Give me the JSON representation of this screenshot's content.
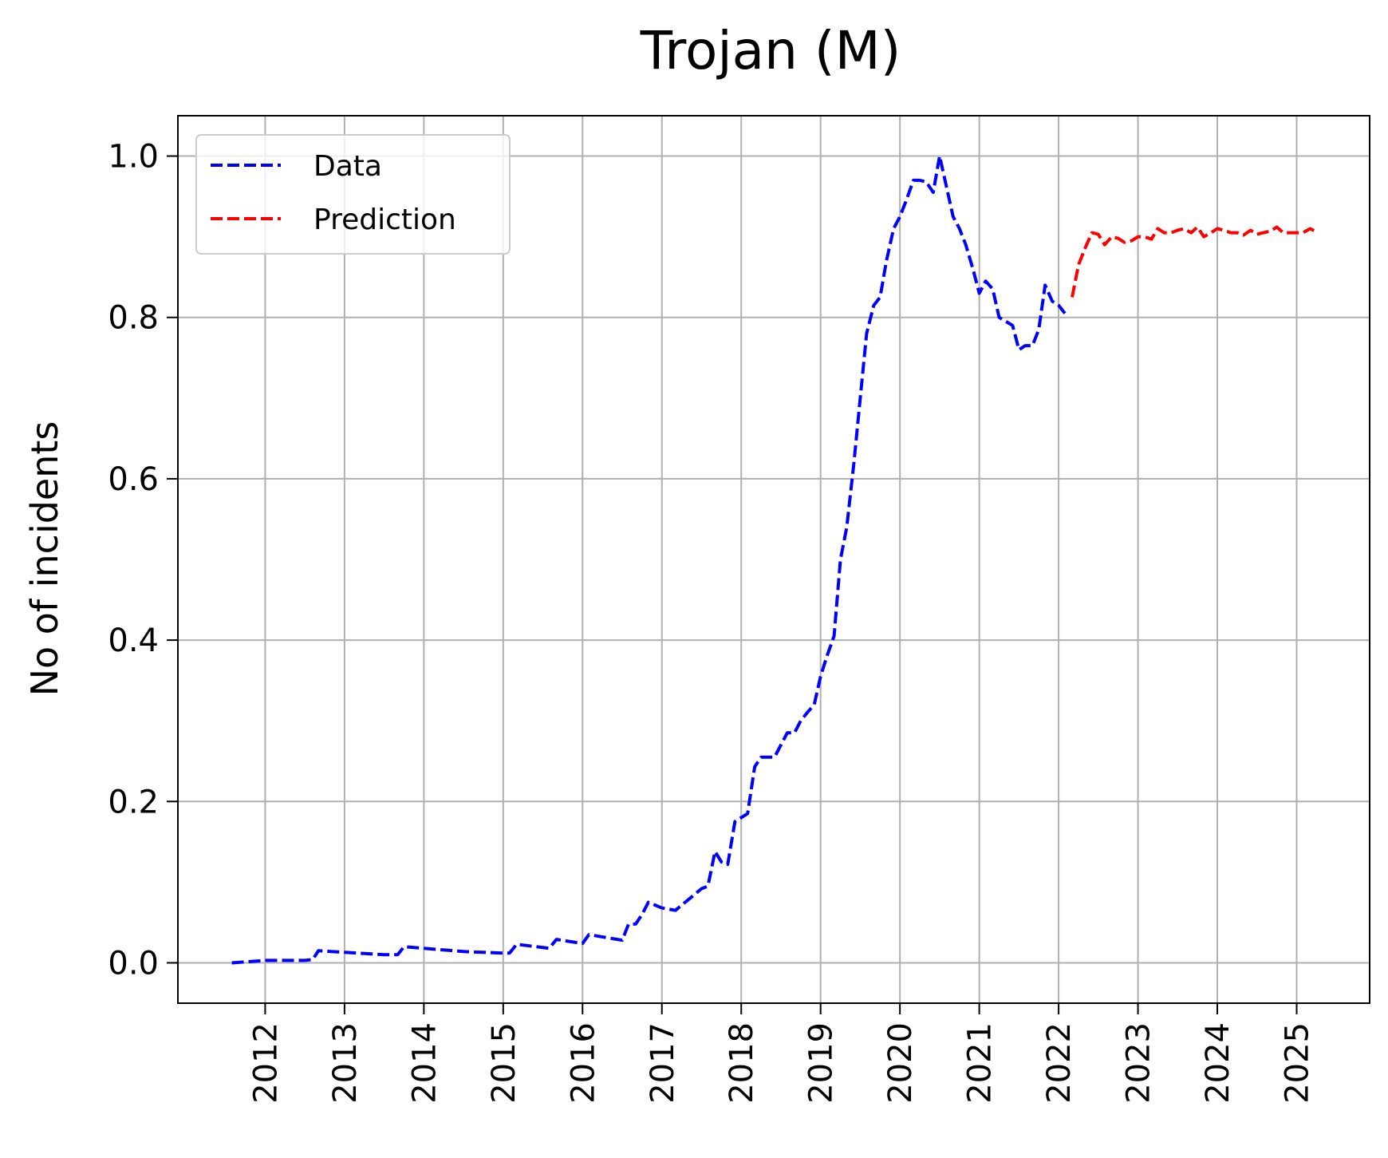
{
  "chart_data": {
    "type": "line",
    "title": "Trojan (M)",
    "xlabel": "",
    "ylabel": "No of incidents",
    "xlim": [
      2010.9,
      2025.92
    ],
    "ylim": [
      -0.05,
      1.05
    ],
    "xticks": [
      2012,
      2013,
      2014,
      2015,
      2016,
      2017,
      2018,
      2019,
      2020,
      2021,
      2022,
      2023,
      2024,
      2025
    ],
    "yticks": [
      0.0,
      0.2,
      0.4,
      0.6,
      0.8,
      1.0
    ],
    "ytick_labels": [
      "0.0",
      "0.2",
      "0.4",
      "0.6",
      "0.8",
      "1.0"
    ],
    "grid": true,
    "legend_position": "upper-left",
    "series": [
      {
        "name": "Data",
        "color": "#0000ff",
        "style": "dashed",
        "points": [
          [
            2011.58,
            0.0
          ],
          [
            2012.0,
            0.003
          ],
          [
            2012.5,
            0.003
          ],
          [
            2012.6,
            0.004
          ],
          [
            2012.67,
            0.015
          ],
          [
            2013.0,
            0.013
          ],
          [
            2013.5,
            0.01
          ],
          [
            2013.67,
            0.01
          ],
          [
            2013.75,
            0.02
          ],
          [
            2014.0,
            0.018
          ],
          [
            2014.5,
            0.014
          ],
          [
            2015.0,
            0.012
          ],
          [
            2015.08,
            0.012
          ],
          [
            2015.17,
            0.023
          ],
          [
            2015.58,
            0.018
          ],
          [
            2015.67,
            0.029
          ],
          [
            2016.0,
            0.024
          ],
          [
            2016.08,
            0.035
          ],
          [
            2016.5,
            0.028
          ],
          [
            2016.58,
            0.048
          ],
          [
            2016.67,
            0.048
          ],
          [
            2016.75,
            0.06
          ],
          [
            2016.83,
            0.075
          ],
          [
            2017.0,
            0.068
          ],
          [
            2017.17,
            0.065
          ],
          [
            2017.5,
            0.092
          ],
          [
            2017.58,
            0.095
          ],
          [
            2017.67,
            0.138
          ],
          [
            2017.75,
            0.125
          ],
          [
            2017.83,
            0.122
          ],
          [
            2017.92,
            0.175
          ],
          [
            2018.0,
            0.18
          ],
          [
            2018.08,
            0.185
          ],
          [
            2018.17,
            0.243
          ],
          [
            2018.25,
            0.255
          ],
          [
            2018.42,
            0.255
          ],
          [
            2018.58,
            0.285
          ],
          [
            2018.67,
            0.285
          ],
          [
            2018.75,
            0.3
          ],
          [
            2018.83,
            0.31
          ],
          [
            2018.92,
            0.32
          ],
          [
            2019.0,
            0.355
          ],
          [
            2019.08,
            0.38
          ],
          [
            2019.17,
            0.405
          ],
          [
            2019.25,
            0.5
          ],
          [
            2019.33,
            0.54
          ],
          [
            2019.42,
            0.62
          ],
          [
            2019.5,
            0.7
          ],
          [
            2019.58,
            0.78
          ],
          [
            2019.67,
            0.815
          ],
          [
            2019.75,
            0.825
          ],
          [
            2019.83,
            0.87
          ],
          [
            2019.92,
            0.91
          ],
          [
            2020.0,
            0.925
          ],
          [
            2020.08,
            0.945
          ],
          [
            2020.17,
            0.97
          ],
          [
            2020.25,
            0.97
          ],
          [
            2020.33,
            0.968
          ],
          [
            2020.42,
            0.955
          ],
          [
            2020.5,
            1.0
          ],
          [
            2020.58,
            0.965
          ],
          [
            2020.67,
            0.925
          ],
          [
            2020.75,
            0.91
          ],
          [
            2020.83,
            0.89
          ],
          [
            2020.92,
            0.86
          ],
          [
            2021.0,
            0.83
          ],
          [
            2021.08,
            0.845
          ],
          [
            2021.17,
            0.835
          ],
          [
            2021.25,
            0.8
          ],
          [
            2021.42,
            0.79
          ],
          [
            2021.5,
            0.76
          ],
          [
            2021.58,
            0.765
          ],
          [
            2021.67,
            0.765
          ],
          [
            2021.75,
            0.785
          ],
          [
            2021.83,
            0.84
          ],
          [
            2021.92,
            0.82
          ],
          [
            2022.0,
            0.815
          ],
          [
            2022.08,
            0.805
          ]
        ]
      },
      {
        "name": "Prediction",
        "color": "#ff0000",
        "style": "dashed",
        "points": [
          [
            2022.17,
            0.825
          ],
          [
            2022.25,
            0.865
          ],
          [
            2022.33,
            0.885
          ],
          [
            2022.42,
            0.905
          ],
          [
            2022.5,
            0.903
          ],
          [
            2022.58,
            0.89
          ],
          [
            2022.67,
            0.9
          ],
          [
            2022.75,
            0.898
          ],
          [
            2022.83,
            0.893
          ],
          [
            2022.92,
            0.895
          ],
          [
            2023.0,
            0.9
          ],
          [
            2023.08,
            0.9
          ],
          [
            2023.17,
            0.897
          ],
          [
            2023.25,
            0.91
          ],
          [
            2023.33,
            0.905
          ],
          [
            2023.42,
            0.905
          ],
          [
            2023.5,
            0.908
          ],
          [
            2023.58,
            0.91
          ],
          [
            2023.67,
            0.905
          ],
          [
            2023.75,
            0.912
          ],
          [
            2023.83,
            0.9
          ],
          [
            2023.92,
            0.905
          ],
          [
            2024.0,
            0.91
          ],
          [
            2024.08,
            0.908
          ],
          [
            2024.17,
            0.905
          ],
          [
            2024.25,
            0.905
          ],
          [
            2024.33,
            0.902
          ],
          [
            2024.42,
            0.908
          ],
          [
            2024.5,
            0.903
          ],
          [
            2024.58,
            0.905
          ],
          [
            2024.67,
            0.907
          ],
          [
            2024.75,
            0.912
          ],
          [
            2024.83,
            0.905
          ],
          [
            2024.92,
            0.905
          ],
          [
            2025.0,
            0.905
          ],
          [
            2025.08,
            0.905
          ],
          [
            2025.17,
            0.91
          ],
          [
            2025.25,
            0.906
          ]
        ]
      }
    ]
  }
}
